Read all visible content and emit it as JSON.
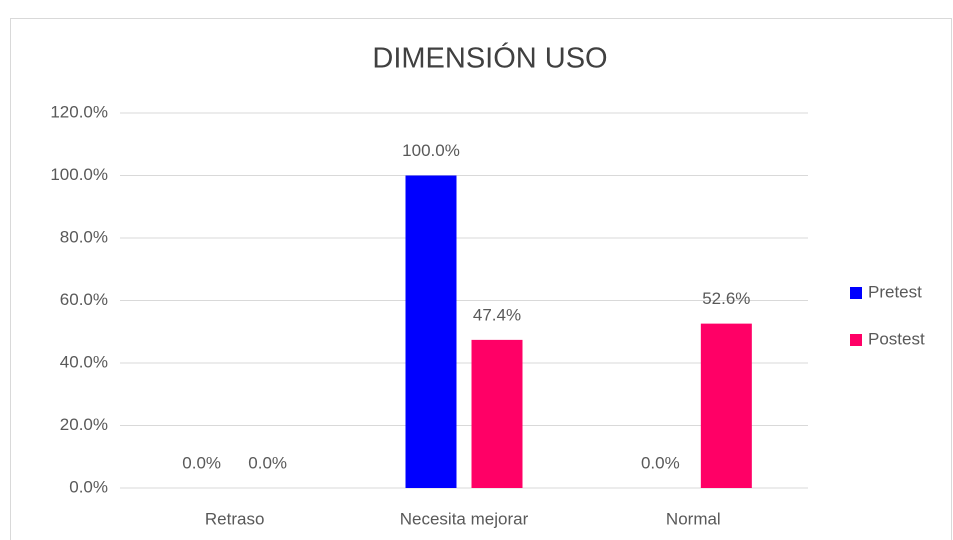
{
  "chart_data": {
    "type": "bar",
    "title": "DIMENSIÓN USO",
    "categories": [
      "Retraso",
      "Necesita mejorar",
      "Normal"
    ],
    "series": [
      {
        "name": "Pretest",
        "color": "#0000ff",
        "values": [
          0,
          100,
          0
        ],
        "value_labels": [
          "0.0%",
          "100.0%",
          "0.0%"
        ]
      },
      {
        "name": "Postest",
        "color": "#ff0066",
        "values": [
          0,
          47.4,
          52.6
        ],
        "value_labels": [
          "0.0%",
          "47.4%",
          "52.6%"
        ]
      }
    ],
    "ylim": [
      0,
      120
    ],
    "yticks": [
      {
        "value": 0,
        "label": "0.0%"
      },
      {
        "value": 20,
        "label": "20.0%"
      },
      {
        "value": 40,
        "label": "40.0%"
      },
      {
        "value": 60,
        "label": "60.0%"
      },
      {
        "value": 80,
        "label": "80.0%"
      },
      {
        "value": 100,
        "label": "100.0%"
      },
      {
        "value": 120,
        "label": "120.0%"
      }
    ],
    "grid": true,
    "legend": "right"
  }
}
